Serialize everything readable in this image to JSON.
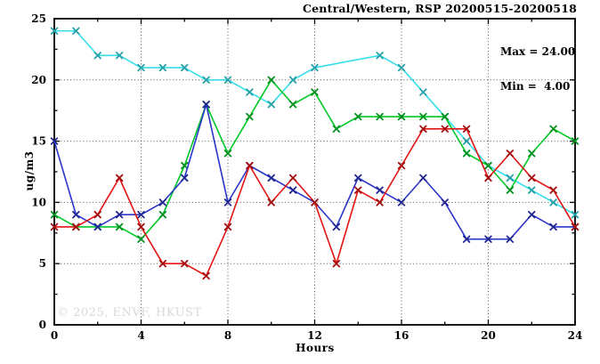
{
  "title": "Central/Western, RSP 20200515-20200518",
  "annotation": {
    "max_label": "Max = 24.00",
    "min_label": "Min =  4.00"
  },
  "watermark": "© 2025, ENVF, HKUST",
  "colors": {
    "background": "#ffffff",
    "border": "#000000",
    "grid": "#555555",
    "text": "#000000",
    "watermark": "#d8d8d8",
    "series_cyan": "#35DEEA",
    "series_green": "#00C828",
    "series_blue": "#2B35C8",
    "series_red": "#E41414"
  },
  "chart_data": {
    "type": "line",
    "title": "Central/Western, RSP 20200515-20200518",
    "xlabel": "Hours",
    "ylabel": "ug/m3",
    "xlim": [
      0,
      24
    ],
    "ylim": [
      0,
      25
    ],
    "grid": "dotted lines at major ticks",
    "legend": "none",
    "x_tick_labels": [
      "0",
      "4",
      "8",
      "12",
      "16",
      "20",
      "24"
    ],
    "y_tick_labels": [
      "0",
      "5",
      "10",
      "15",
      "20",
      "25"
    ],
    "x_major_ticks": [
      0,
      4,
      8,
      12,
      16,
      20,
      24
    ],
    "y_major_ticks": [
      0,
      5,
      10,
      15,
      20,
      25
    ],
    "x_minor_step": 2,
    "y_minor_step": 2.5,
    "marker": "x-cross",
    "x": [
      0,
      1,
      2,
      3,
      4,
      5,
      6,
      7,
      8,
      9,
      10,
      11,
      12,
      13,
      14,
      15,
      16,
      17,
      18,
      19,
      20,
      21,
      22,
      23,
      24
    ],
    "series": [
      {
        "name": "cyan",
        "values": [
          24,
          24,
          22,
          22,
          21,
          21,
          21,
          20,
          20,
          19,
          18,
          20,
          21,
          null,
          null,
          22,
          21,
          19,
          17,
          15,
          13,
          12,
          11,
          10,
          9
        ]
      },
      {
        "name": "green",
        "values": [
          9,
          8,
          8,
          8,
          7,
          9,
          13,
          18,
          14,
          17,
          20,
          18,
          19,
          16,
          17,
          17,
          17,
          17,
          17,
          14,
          13,
          11,
          14,
          16,
          15
        ]
      },
      {
        "name": "blue",
        "values": [
          15,
          9,
          8,
          9,
          9,
          10,
          12,
          18,
          10,
          13,
          12,
          11,
          10,
          8,
          12,
          11,
          10,
          12,
          10,
          7,
          7,
          7,
          9,
          8,
          8
        ]
      },
      {
        "name": "red",
        "values": [
          8,
          8,
          9,
          12,
          8,
          5,
          5,
          4,
          8,
          13,
          10,
          12,
          10,
          5,
          11,
          10,
          13,
          16,
          16,
          16,
          12,
          14,
          12,
          11,
          8
        ]
      }
    ],
    "annotations": [
      "Max = 24.00",
      "Min =  4.00"
    ]
  }
}
